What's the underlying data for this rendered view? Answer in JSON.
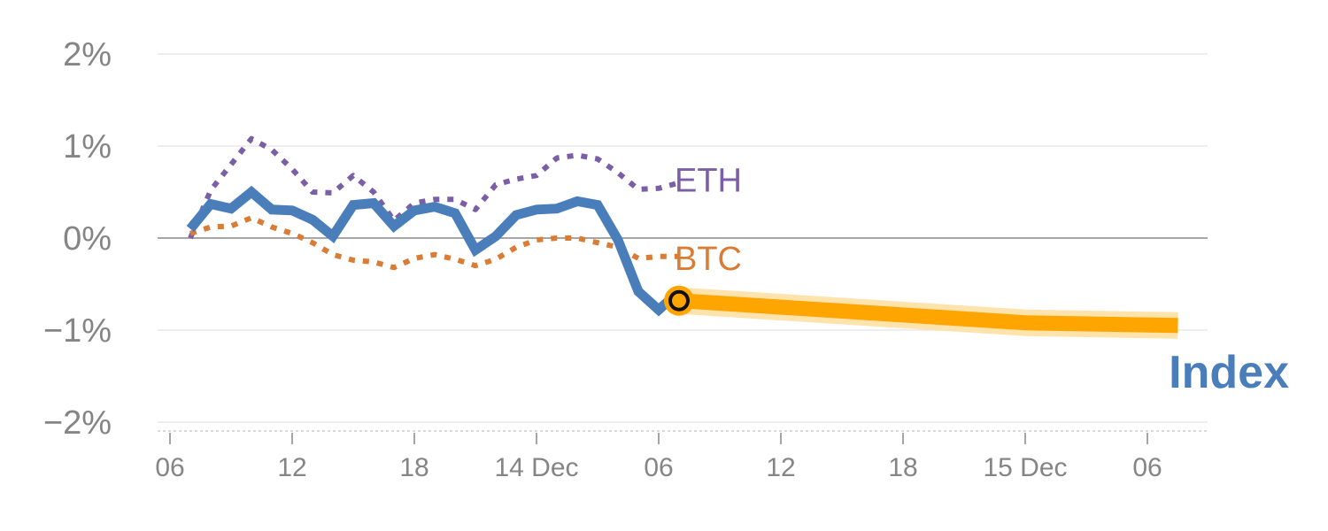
{
  "chart_data": {
    "type": "line",
    "title": "",
    "xlabel": "",
    "ylabel": "",
    "ylim": [
      -2,
      2
    ],
    "xlim": [
      0,
      51
    ],
    "grid": true,
    "y_ticks": [
      {
        "value": 2,
        "label": "2%"
      },
      {
        "value": 1,
        "label": "1%"
      },
      {
        "value": 0,
        "label": "0%"
      },
      {
        "value": -1,
        "label": "−1%"
      },
      {
        "value": -2,
        "label": "−2%"
      }
    ],
    "x_ticks": [
      {
        "value": 0,
        "label": "06"
      },
      {
        "value": 6,
        "label": "12"
      },
      {
        "value": 12,
        "label": "18"
      },
      {
        "value": 18,
        "label": "14 Dec"
      },
      {
        "value": 24,
        "label": "06"
      },
      {
        "value": 30,
        "label": "12"
      },
      {
        "value": 36,
        "label": "18"
      },
      {
        "value": 42,
        "label": "15 Dec"
      },
      {
        "value": 48,
        "label": "06"
      }
    ],
    "series": [
      {
        "name": "ETH",
        "style": "dotted",
        "color": "#7b5fa6",
        "x": [
          1,
          2,
          3,
          4,
          5,
          6,
          7,
          8,
          9,
          10,
          11,
          12,
          13,
          14,
          15,
          16,
          17,
          18,
          19,
          20,
          21,
          22,
          23,
          24,
          25
        ],
        "values": [
          0.0,
          0.52,
          0.8,
          1.08,
          0.96,
          0.75,
          0.5,
          0.49,
          0.68,
          0.5,
          0.19,
          0.38,
          0.42,
          0.42,
          0.31,
          0.58,
          0.64,
          0.68,
          0.87,
          0.9,
          0.86,
          0.71,
          0.53,
          0.54,
          0.6
        ]
      },
      {
        "name": "BTC",
        "style": "dotted",
        "color": "#d97c35",
        "x": [
          1,
          2,
          3,
          4,
          5,
          6,
          7,
          8,
          9,
          10,
          11,
          12,
          13,
          14,
          15,
          16,
          17,
          18,
          19,
          20,
          21,
          22,
          23,
          24,
          25
        ],
        "values": [
          0.05,
          0.12,
          0.13,
          0.22,
          0.12,
          0.05,
          -0.05,
          -0.18,
          -0.24,
          -0.26,
          -0.32,
          -0.22,
          -0.18,
          -0.23,
          -0.3,
          -0.23,
          -0.1,
          -0.02,
          0.0,
          0.0,
          -0.05,
          -0.1,
          -0.22,
          -0.2,
          -0.2
        ]
      },
      {
        "name": "Index",
        "style": "solid",
        "color": "#4a7ebb",
        "x": [
          1,
          2,
          3,
          4,
          5,
          6,
          7,
          8,
          9,
          10,
          11,
          12,
          13,
          14,
          15,
          16,
          17,
          18,
          19,
          20,
          21,
          22,
          23,
          24,
          24.5
        ],
        "values": [
          0.1,
          0.37,
          0.32,
          0.5,
          0.31,
          0.3,
          0.2,
          0.02,
          0.36,
          0.38,
          0.13,
          0.3,
          0.34,
          0.27,
          -0.13,
          0.02,
          0.25,
          0.31,
          0.32,
          0.4,
          0.36,
          -0.02,
          -0.58,
          -0.78,
          -0.68
        ]
      },
      {
        "name": "Index projection",
        "style": "band",
        "color": "#ffa500",
        "x": [
          25,
          42,
          49.5
        ],
        "values": [
          -0.68,
          -0.92,
          -0.95
        ]
      }
    ],
    "marker": {
      "x": 25,
      "y": -0.68
    },
    "labels": {
      "eth": "ETH",
      "btc": "BTC",
      "index": "Index"
    },
    "colors": {
      "eth": "#7b5fa6",
      "btc": "#d97c35",
      "index": "#4a7ebb",
      "projection": "#ffa500",
      "projection_halo": "#ffe0a3",
      "grid": "#e3e3e3",
      "zero_line": "#888888",
      "tick_text": "#858585"
    }
  }
}
